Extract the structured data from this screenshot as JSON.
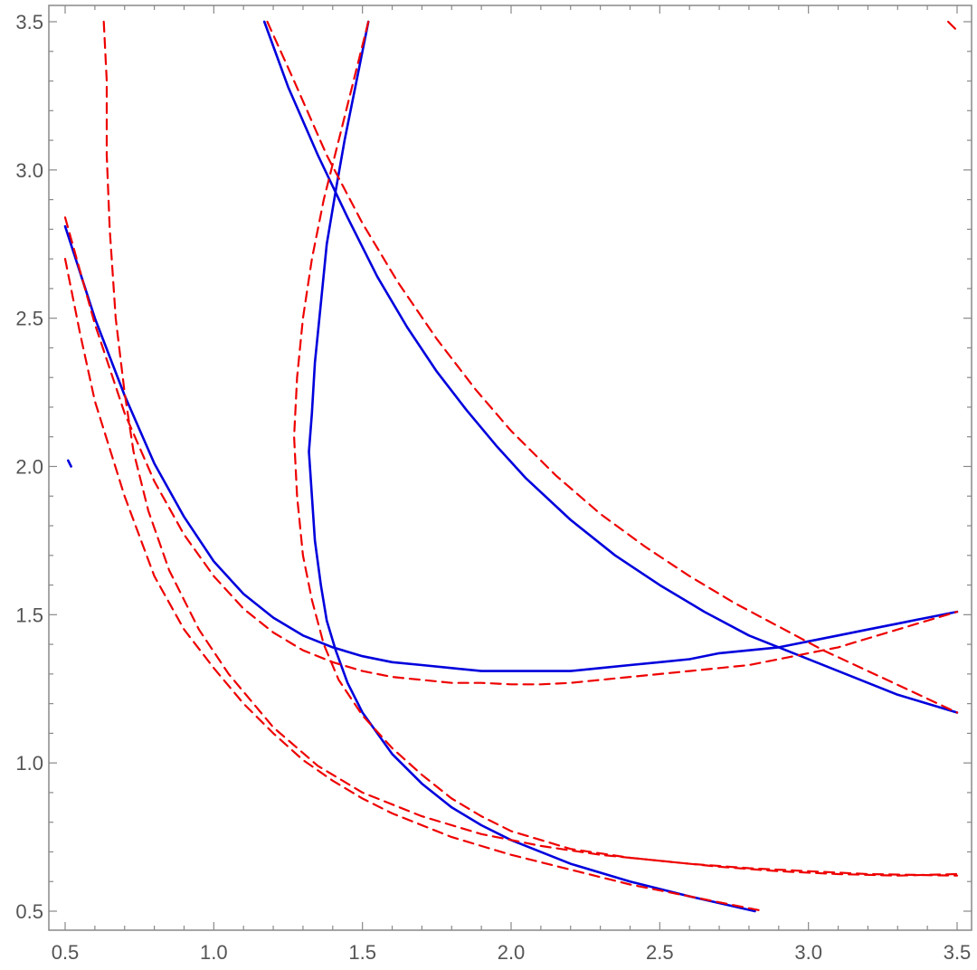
{
  "chart_data": {
    "type": "line",
    "title": "",
    "xlabel": "",
    "ylabel": "",
    "xlim": [
      0.5,
      3.5
    ],
    "ylim": [
      0.5,
      3.5
    ],
    "grid": false,
    "legend": "none",
    "x_ticks": [
      0.5,
      1.0,
      1.5,
      2.0,
      2.5,
      3.0,
      3.5
    ],
    "y_ticks": [
      0.5,
      1.0,
      1.5,
      2.0,
      2.5,
      3.0,
      3.5
    ],
    "x_tick_labels": [
      "0.5",
      "1.0",
      "1.5",
      "2.0",
      "2.5",
      "3.0",
      "3.5"
    ],
    "y_tick_labels": [
      "0.5",
      "1.0",
      "1.5",
      "2.0",
      "2.5",
      "3.0",
      "3.5"
    ],
    "series": [
      {
        "color": "#0000dd",
        "style": "solid",
        "points": [
          [
            0.5,
            2.81
          ],
          [
            0.6,
            2.5
          ],
          [
            0.7,
            2.24
          ],
          [
            0.8,
            2.01
          ],
          [
            0.9,
            1.83
          ],
          [
            1.0,
            1.68
          ],
          [
            1.1,
            1.57
          ],
          [
            1.2,
            1.49
          ],
          [
            1.3,
            1.43
          ],
          [
            1.4,
            1.39
          ],
          [
            1.5,
            1.36
          ],
          [
            1.6,
            1.34
          ],
          [
            1.7,
            1.33
          ],
          [
            1.8,
            1.32
          ],
          [
            1.9,
            1.31
          ],
          [
            2.0,
            1.31
          ],
          [
            2.1,
            1.31
          ],
          [
            2.2,
            1.31
          ],
          [
            2.3,
            1.32
          ],
          [
            2.4,
            1.33
          ],
          [
            2.5,
            1.34
          ],
          [
            2.6,
            1.35
          ],
          [
            2.7,
            1.37
          ],
          [
            2.8,
            1.38
          ],
          [
            2.9,
            1.39
          ],
          [
            3.0,
            1.41
          ],
          [
            3.1,
            1.43
          ],
          [
            3.2,
            1.45
          ],
          [
            3.3,
            1.47
          ],
          [
            3.4,
            1.49
          ],
          [
            3.5,
            1.51
          ]
        ]
      },
      {
        "color": "#0000dd",
        "style": "solid",
        "points": [
          [
            1.52,
            3.5
          ],
          [
            1.48,
            3.3
          ],
          [
            1.44,
            3.1
          ],
          [
            1.41,
            2.93
          ],
          [
            1.38,
            2.75
          ],
          [
            1.36,
            2.55
          ],
          [
            1.34,
            2.35
          ],
          [
            1.33,
            2.18
          ],
          [
            1.32,
            2.05
          ],
          [
            1.33,
            1.9
          ],
          [
            1.34,
            1.75
          ],
          [
            1.36,
            1.6
          ],
          [
            1.38,
            1.48
          ],
          [
            1.41,
            1.38
          ],
          [
            1.45,
            1.27
          ],
          [
            1.5,
            1.17
          ],
          [
            1.6,
            1.03
          ],
          [
            1.7,
            0.93
          ],
          [
            1.8,
            0.85
          ],
          [
            1.9,
            0.79
          ],
          [
            2.0,
            0.74
          ],
          [
            2.2,
            0.66
          ],
          [
            2.4,
            0.6
          ],
          [
            2.6,
            0.55
          ],
          [
            2.82,
            0.5
          ]
        ]
      },
      {
        "color": "#0000dd",
        "style": "solid",
        "points": [
          [
            1.17,
            3.5
          ],
          [
            1.25,
            3.28
          ],
          [
            1.35,
            3.05
          ],
          [
            1.45,
            2.84
          ],
          [
            1.55,
            2.64
          ],
          [
            1.65,
            2.47
          ],
          [
            1.75,
            2.32
          ],
          [
            1.85,
            2.19
          ],
          [
            1.95,
            2.07
          ],
          [
            2.05,
            1.96
          ],
          [
            2.2,
            1.82
          ],
          [
            2.35,
            1.7
          ],
          [
            2.5,
            1.6
          ],
          [
            2.65,
            1.51
          ],
          [
            2.8,
            1.43
          ],
          [
            2.95,
            1.37
          ],
          [
            3.1,
            1.31
          ],
          [
            3.2,
            1.27
          ],
          [
            3.3,
            1.23
          ],
          [
            3.4,
            1.2
          ],
          [
            3.5,
            1.17
          ]
        ]
      },
      {
        "color": "#0000dd",
        "style": "solid",
        "points": [
          [
            0.51,
            2.02
          ],
          [
            0.52,
            2.0
          ]
        ]
      },
      {
        "color": "#ee0000",
        "style": "dashed",
        "points": [
          [
            0.5,
            2.84
          ],
          [
            0.6,
            2.48
          ],
          [
            0.7,
            2.18
          ],
          [
            0.8,
            1.95
          ],
          [
            0.9,
            1.77
          ],
          [
            1.0,
            1.63
          ],
          [
            1.1,
            1.52
          ],
          [
            1.2,
            1.44
          ],
          [
            1.3,
            1.38
          ],
          [
            1.4,
            1.34
          ],
          [
            1.5,
            1.31
          ],
          [
            1.6,
            1.29
          ],
          [
            1.7,
            1.28
          ],
          [
            1.8,
            1.27
          ],
          [
            1.9,
            1.27
          ],
          [
            2.0,
            1.265
          ],
          [
            2.1,
            1.265
          ],
          [
            2.2,
            1.27
          ],
          [
            2.3,
            1.28
          ],
          [
            2.4,
            1.29
          ],
          [
            2.5,
            1.3
          ],
          [
            2.6,
            1.31
          ],
          [
            2.7,
            1.32
          ],
          [
            2.8,
            1.33
          ],
          [
            2.9,
            1.35
          ],
          [
            3.0,
            1.37
          ],
          [
            3.1,
            1.39
          ],
          [
            3.2,
            1.42
          ],
          [
            3.3,
            1.45
          ],
          [
            3.4,
            1.48
          ],
          [
            3.5,
            1.51
          ]
        ]
      },
      {
        "color": "#ee0000",
        "style": "dashed",
        "points": [
          [
            0.63,
            3.5
          ],
          [
            0.64,
            3.3
          ],
          [
            0.64,
            3.05
          ],
          [
            0.65,
            2.8
          ],
          [
            0.67,
            2.5
          ],
          [
            0.7,
            2.25
          ],
          [
            0.73,
            2.05
          ],
          [
            0.78,
            1.85
          ],
          [
            0.85,
            1.65
          ],
          [
            0.95,
            1.45
          ],
          [
            1.05,
            1.3
          ],
          [
            1.2,
            1.12
          ],
          [
            1.35,
            0.99
          ],
          [
            1.5,
            0.9
          ],
          [
            1.7,
            0.82
          ],
          [
            1.9,
            0.76
          ],
          [
            2.1,
            0.72
          ],
          [
            2.3,
            0.69
          ],
          [
            2.5,
            0.67
          ],
          [
            2.7,
            0.65
          ],
          [
            2.9,
            0.635
          ],
          [
            3.1,
            0.625
          ],
          [
            3.3,
            0.62
          ],
          [
            3.5,
            0.625
          ]
        ]
      },
      {
        "color": "#ee0000",
        "style": "dashed",
        "points": [
          [
            0.5,
            2.7
          ],
          [
            0.55,
            2.45
          ],
          [
            0.6,
            2.22
          ],
          [
            0.7,
            1.9
          ],
          [
            0.8,
            1.63
          ],
          [
            0.9,
            1.45
          ],
          [
            1.0,
            1.32
          ],
          [
            1.1,
            1.2
          ],
          [
            1.2,
            1.1
          ],
          [
            1.3,
            1.01
          ],
          [
            1.4,
            0.94
          ],
          [
            1.5,
            0.88
          ],
          [
            1.6,
            0.83
          ],
          [
            1.8,
            0.75
          ],
          [
            2.0,
            0.69
          ],
          [
            2.2,
            0.64
          ],
          [
            2.4,
            0.59
          ],
          [
            2.6,
            0.55
          ],
          [
            2.85,
            0.5
          ]
        ]
      },
      {
        "color": "#ee0000",
        "style": "dashed",
        "points": [
          [
            1.52,
            3.5
          ],
          [
            1.47,
            3.3
          ],
          [
            1.42,
            3.1
          ],
          [
            1.37,
            2.9
          ],
          [
            1.33,
            2.7
          ],
          [
            1.3,
            2.5
          ],
          [
            1.28,
            2.3
          ],
          [
            1.27,
            2.1
          ],
          [
            1.28,
            1.9
          ],
          [
            1.3,
            1.7
          ],
          [
            1.33,
            1.55
          ],
          [
            1.37,
            1.4
          ],
          [
            1.42,
            1.28
          ],
          [
            1.5,
            1.16
          ],
          [
            1.6,
            1.05
          ],
          [
            1.7,
            0.96
          ],
          [
            1.8,
            0.88
          ],
          [
            1.9,
            0.82
          ],
          [
            2.0,
            0.77
          ],
          [
            2.2,
            0.71
          ],
          [
            2.4,
            0.68
          ],
          [
            2.6,
            0.66
          ],
          [
            2.8,
            0.645
          ],
          [
            3.0,
            0.635
          ],
          [
            3.2,
            0.625
          ],
          [
            3.5,
            0.62
          ]
        ]
      },
      {
        "color": "#ee0000",
        "style": "dashed",
        "points": [
          [
            1.18,
            3.5
          ],
          [
            1.27,
            3.3
          ],
          [
            1.38,
            3.05
          ],
          [
            1.5,
            2.82
          ],
          [
            1.62,
            2.62
          ],
          [
            1.75,
            2.43
          ],
          [
            1.88,
            2.26
          ],
          [
            2.0,
            2.12
          ],
          [
            2.15,
            1.97
          ],
          [
            2.3,
            1.84
          ],
          [
            2.45,
            1.73
          ],
          [
            2.6,
            1.63
          ],
          [
            2.75,
            1.54
          ],
          [
            2.9,
            1.46
          ],
          [
            3.05,
            1.38
          ],
          [
            3.2,
            1.31
          ],
          [
            3.35,
            1.24
          ],
          [
            3.5,
            1.17
          ]
        ]
      },
      {
        "color": "#ee0000",
        "style": "dashed",
        "points": [
          [
            3.47,
            3.5
          ],
          [
            3.5,
            3.47
          ]
        ]
      }
    ]
  }
}
